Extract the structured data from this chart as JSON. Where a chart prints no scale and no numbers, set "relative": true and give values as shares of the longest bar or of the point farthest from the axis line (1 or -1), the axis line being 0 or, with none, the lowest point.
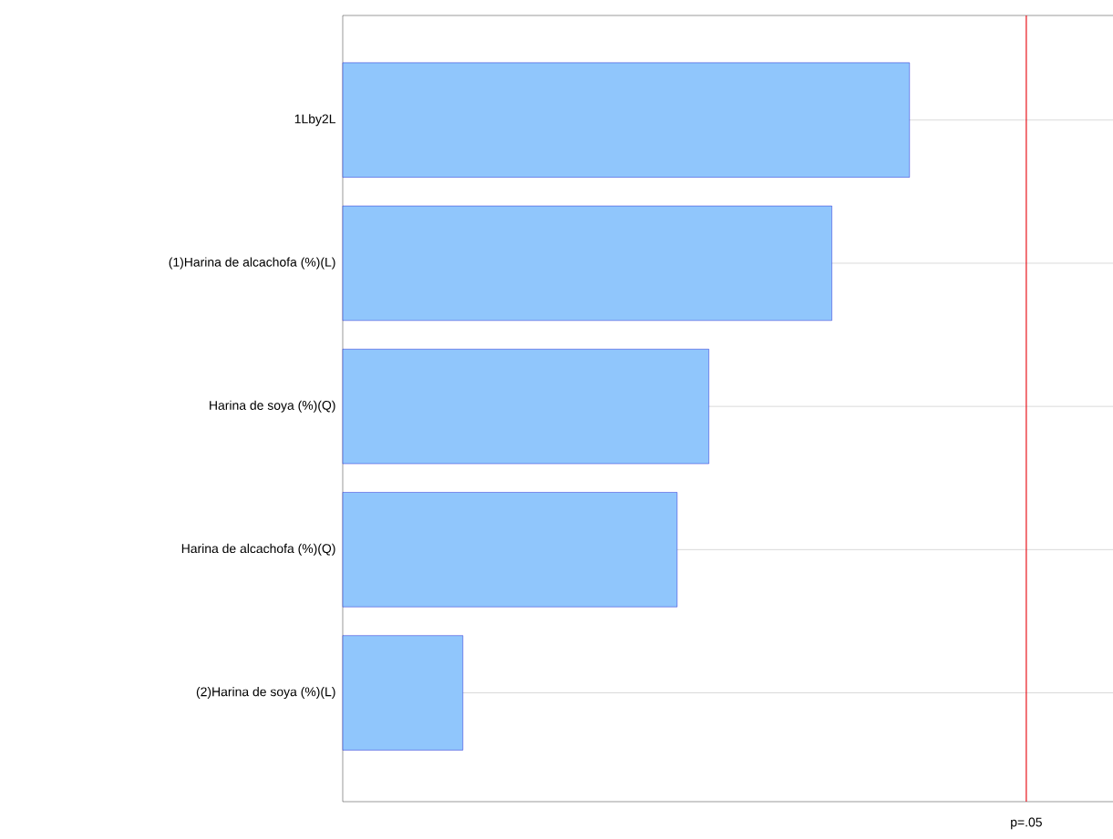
{
  "chart_data": {
    "type": "bar",
    "orientation": "horizontal",
    "relative": true,
    "categories": [
      "1Lby2L",
      "(1)Harina de alcachofa (%)(L)",
      "Harina de soya (%)(Q)",
      "Harina de alcachofa (%)(Q)",
      "(2)Harina de soya (%)(L)"
    ],
    "values": [
      1,
      0.863,
      0.646,
      0.59,
      0.212
    ],
    "color": "#90c6fc",
    "grid": "y",
    "ref_lines": [
      {
        "axis": "x",
        "value": 1.206,
        "label": "p=.05",
        "color": "#e8141c"
      }
    ]
  }
}
